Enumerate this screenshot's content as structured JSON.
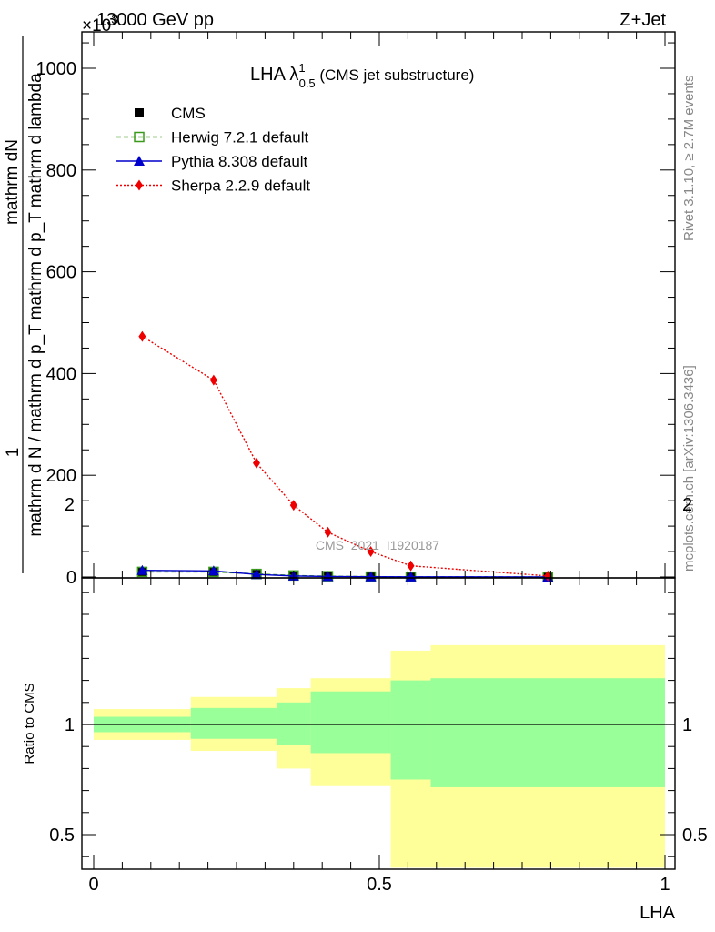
{
  "header": {
    "left": "13000 GeV pp",
    "right": "Z+Jet",
    "exponent": "×10",
    "exponent_power": "3"
  },
  "side_labels": {
    "rivet": "Rivet 3.1.10, ≥ 2.7M events",
    "mcplots": "mcplots.cern.ch [arXiv:1306.3436]"
  },
  "watermark": "CMS_2021_I1920187",
  "chart_data": [
    {
      "type": "line",
      "title_main": "LHA λ",
      "title_sup": "1",
      "title_sub": "0.5",
      "title_suffix": " (CMS jet substructure)",
      "ylabel_one": "1",
      "ylabel_num": "mathrm dN",
      "ylabel_den": "mathrm d N / mathrm d p_T mathrm d p_T mathrm d lambda",
      "xlim": [
        0,
        1
      ],
      "ylim": [
        0,
        1000
      ],
      "yticks": [
        0,
        200,
        400,
        600,
        800,
        1000
      ],
      "ytick_labels": [
        "0",
        "200",
        "400",
        "600",
        "800",
        "1000"
      ],
      "legend_placement": "top-left",
      "series": [
        {
          "name": "CMS",
          "color": "#000000",
          "marker": "square",
          "x": [
            0.085,
            0.21,
            0.285,
            0.35,
            0.41,
            0.485,
            0.555,
            0.795
          ],
          "y": [
            9,
            9,
            5,
            2,
            1,
            0.5,
            0.3,
            0.1
          ]
        },
        {
          "name": "Herwig 7.2.1 default",
          "color": "#3a9a1a",
          "marker": "open-square",
          "dash": "dashed",
          "x": [
            0.085,
            0.21,
            0.285,
            0.35,
            0.41,
            0.485,
            0.555,
            0.795
          ],
          "y": [
            10,
            10,
            6,
            3,
            1.5,
            0.7,
            0.4,
            0.1
          ]
        },
        {
          "name": "Pythia 8.308 default",
          "color": "#0000cc",
          "marker": "triangle",
          "dash": "solid",
          "x": [
            0.085,
            0.21,
            0.285,
            0.35,
            0.41,
            0.485,
            0.555,
            0.795
          ],
          "y": [
            13,
            12,
            5,
            2,
            1,
            0.5,
            0.3,
            0.1
          ]
        },
        {
          "name": "Sherpa 2.2.9 default",
          "color": "#ee0000",
          "marker": "diamond",
          "dash": "dotted",
          "x": [
            0.085,
            0.21,
            0.285,
            0.35,
            0.41,
            0.485,
            0.555,
            0.795
          ],
          "y": [
            473,
            387,
            224,
            141,
            88,
            50,
            22,
            2
          ]
        }
      ]
    },
    {
      "type": "area",
      "ylabel": "Ratio to CMS",
      "xlabel": "LHA",
      "xlim": [
        0,
        1
      ],
      "ylim": [
        0.35,
        2.25
      ],
      "xticks": [
        0,
        0.5,
        1
      ],
      "xtick_labels": [
        "0",
        "0.5",
        "1"
      ],
      "yticks": [
        0.5,
        1,
        2
      ],
      "ytick_labels": [
        "0.5",
        "1",
        "2"
      ],
      "bands": {
        "edges": [
          0,
          0.17,
          0.32,
          0.38,
          0.52,
          0.59,
          1.0
        ],
        "green_low": [
          0.965,
          0.935,
          0.905,
          0.87,
          0.75,
          0.715
        ],
        "green_high": [
          1.035,
          1.075,
          1.1,
          1.15,
          1.2,
          1.21
        ],
        "yellow_low": [
          0.93,
          0.88,
          0.8,
          0.72,
          0.35,
          0.35
        ],
        "yellow_high": [
          1.07,
          1.125,
          1.165,
          1.21,
          1.335,
          1.36
        ],
        "green_color": "#99ff99",
        "yellow_color": "#ffff99"
      },
      "reference_line": 1
    }
  ]
}
